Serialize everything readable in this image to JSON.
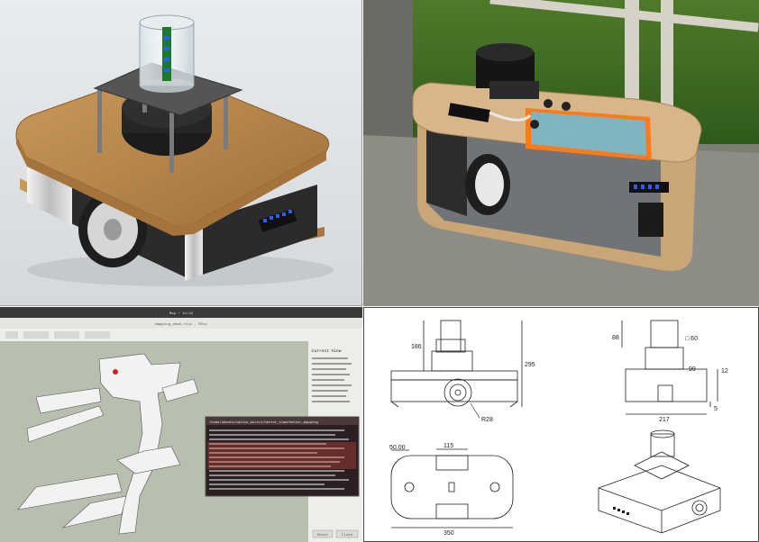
{
  "drawing": {
    "dim_height_total": "295",
    "dim_top_height": "186",
    "dim_wheel_radius": "R28",
    "dim_side_height": "88",
    "dim_side_diameter": "□ 60",
    "dim_side_mid": "99",
    "dim_side_right": "12",
    "dim_side_gap": "5",
    "dim_side_width": "217",
    "dim_top_offset": "50.00",
    "dim_top_slot": "115",
    "dim_top_length": "350"
  },
  "rviz": {
    "window_title": "Map *  14:32",
    "sub_title": "mapping_demo.rviz - RViz",
    "panel_header": "Current View",
    "terminal_title": "/home/ubuntu/catkin_ws/src/hector_slam/hector_mapping",
    "buttons": [
      "Reset",
      "Close"
    ]
  },
  "colors": {
    "wood": "#b98a4c",
    "body_dark": "#2a2a2a",
    "led_blue": "#2f5cff",
    "screen_orange": "#ff7a1a"
  }
}
